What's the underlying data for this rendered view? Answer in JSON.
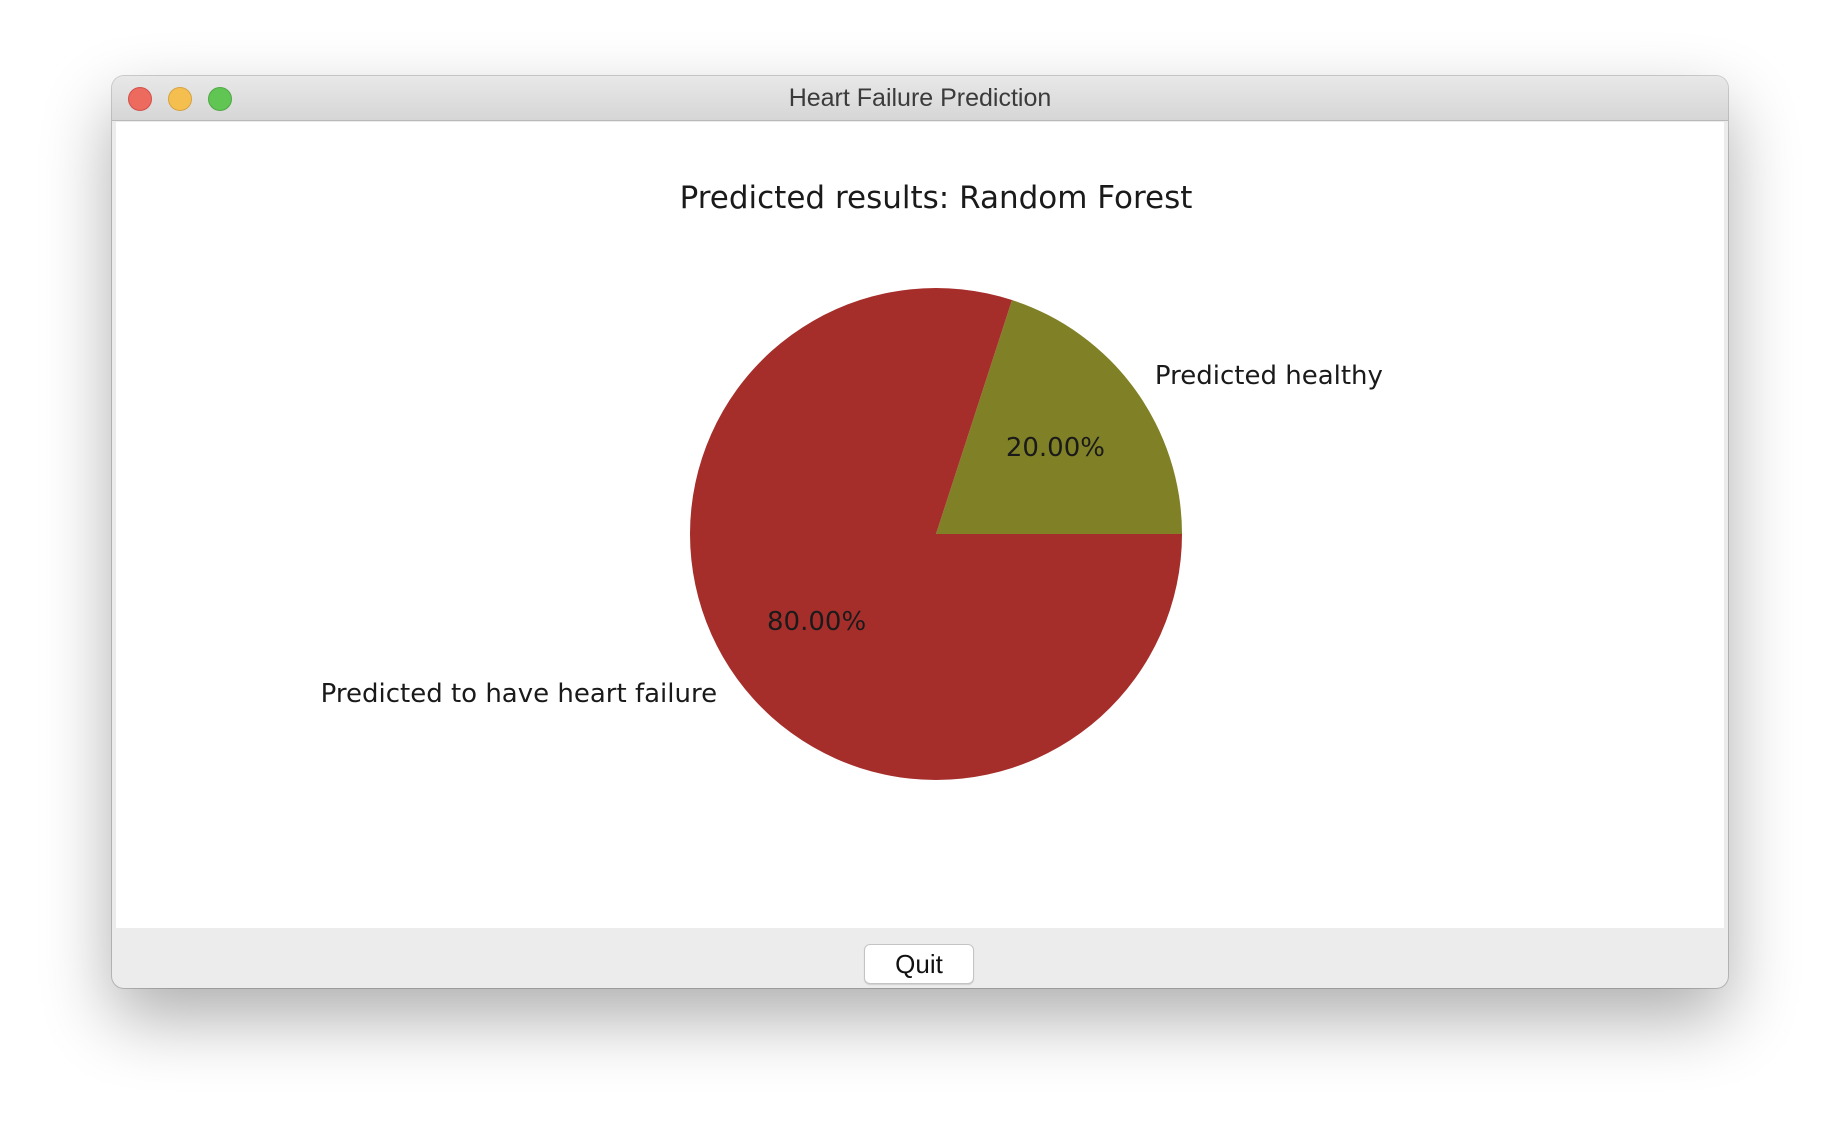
{
  "window": {
    "title": "Heart Failure Prediction"
  },
  "buttons": {
    "quit_label": "Quit"
  },
  "chart_data": {
    "type": "pie",
    "title": "Predicted results: Random Forest",
    "slices": [
      {
        "label": "Predicted healthy",
        "value": 20.0,
        "pct_label": "20.00%",
        "color": "#808026"
      },
      {
        "label": "Predicted to have heart failure",
        "value": 80.0,
        "pct_label": "80.00%",
        "color": "#a52e2b"
      }
    ],
    "start_angle": 0,
    "direction": "counterclockwise"
  }
}
